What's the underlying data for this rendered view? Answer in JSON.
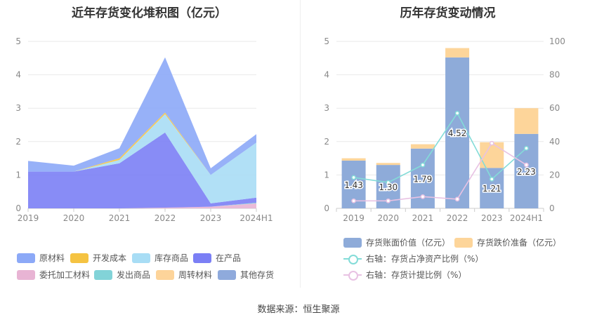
{
  "source_label": "数据来源：恒生聚源",
  "chart_data": [
    {
      "type": "area",
      "title": "近年存货变化堆积图（亿元）",
      "categories": [
        "2019",
        "2020",
        "2021",
        "2022",
        "2023",
        "2024H1"
      ],
      "ylim": [
        0,
        5
      ],
      "yticks": [
        "0",
        "1",
        "2",
        "3",
        "4",
        "5"
      ],
      "stacked": true,
      "grid": true,
      "legend_position": "bottom",
      "series": [
        {
          "name": "委托加工材料",
          "color": "#e8b4d4",
          "values": [
            0,
            0,
            0,
            0.02,
            0.05,
            0.15
          ]
        },
        {
          "name": "发出商品",
          "color": "#82d3d8",
          "values": [
            0,
            0,
            0,
            0,
            0,
            0.02
          ]
        },
        {
          "name": "在产品",
          "color": "#7b7ff5",
          "values": [
            1.1,
            1.1,
            1.35,
            2.25,
            0.1,
            0.15
          ]
        },
        {
          "name": "库存商品",
          "color": "#a8ddf5",
          "values": [
            0,
            0,
            0.1,
            0.55,
            0.85,
            1.65
          ]
        },
        {
          "name": "开发成本",
          "color": "#f5c342",
          "values": [
            0,
            0,
            0.05,
            0.05,
            0,
            0
          ]
        },
        {
          "name": "周转材料",
          "color": "#fdd49a",
          "values": [
            0,
            0,
            0,
            0,
            0,
            0
          ]
        },
        {
          "name": "其他存货",
          "color": "#8faadc",
          "values": [
            0,
            0,
            0,
            0,
            0,
            0
          ]
        },
        {
          "name": "原材料",
          "color": "#8ca9f7",
          "values": [
            0.32,
            0.18,
            0.3,
            1.65,
            0.2,
            0.25
          ]
        }
      ],
      "legend_order": [
        "原材料",
        "开发成本",
        "库存商品",
        "在产品",
        "委托加工材料",
        "发出商品",
        "周转材料",
        "其他存货"
      ]
    },
    {
      "type": "bar",
      "title": "历年存货变动情况",
      "categories": [
        "2019",
        "2020",
        "2021",
        "2022",
        "2023",
        "2024H1"
      ],
      "ylim": [
        0,
        5
      ],
      "yticks": [
        "0",
        "1",
        "2",
        "3",
        "4",
        "5"
      ],
      "y2lim": [
        0,
        100
      ],
      "y2ticks": [
        "0",
        "20",
        "40",
        "60",
        "80",
        "100"
      ],
      "stacked": true,
      "grid": true,
      "legend_position": "bottom",
      "series": [
        {
          "name": "存货账面价值（亿元）",
          "color": "#8eabd9",
          "values": [
            1.43,
            1.3,
            1.79,
            4.52,
            1.21,
            2.23
          ],
          "labels": [
            "1.43",
            "1.30",
            "1.79",
            "4.52",
            "1.21",
            "2.23"
          ]
        },
        {
          "name": "存货跌价准备（亿元）",
          "color": "#fdd59a",
          "values": [
            0.07,
            0.06,
            0.13,
            0.28,
            0.77,
            0.77
          ]
        }
      ],
      "line_series": [
        {
          "name": "右轴：存货占净资产比例（%）",
          "color": "#83dcd8",
          "axis": "right",
          "values": [
            18.5,
            15.5,
            26,
            57,
            17.5,
            36
          ]
        },
        {
          "name": "右轴：存货计提比例（%）",
          "color": "#e8c2e3",
          "axis": "right",
          "values": [
            4.5,
            4.5,
            7,
            5.5,
            39,
            26
          ]
        }
      ]
    }
  ]
}
